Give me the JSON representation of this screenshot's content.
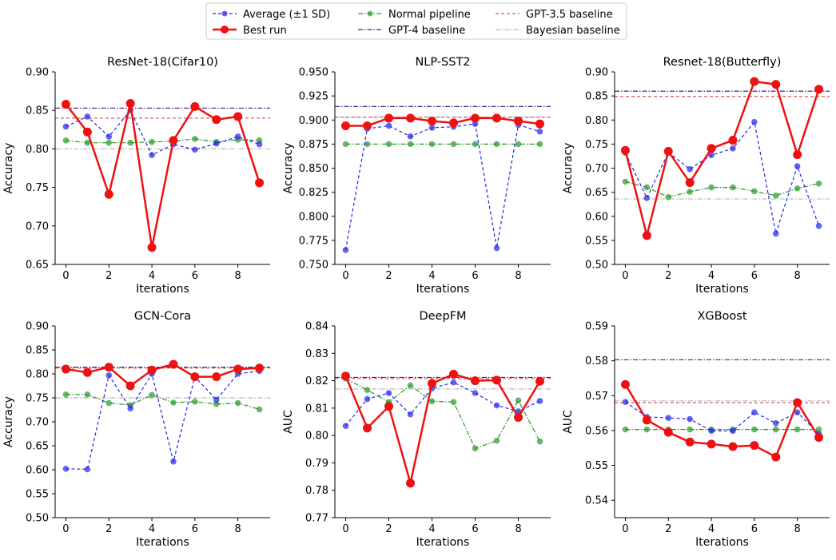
{
  "legend": {
    "entries": [
      {
        "label": "Average (±1 SD)",
        "color": "#2222ee",
        "style": "dashed-marker"
      },
      {
        "label": "Best run",
        "color": "#ee1111",
        "style": "solid-marker"
      },
      {
        "label": "Normal pipeline",
        "color": "#2a9a2a",
        "style": "dashdot-marker"
      },
      {
        "label": "GPT-4 baseline",
        "color": "#4b1b8a",
        "style": "dashdot"
      },
      {
        "label": "GPT-3.5 baseline",
        "color": "#d06060",
        "style": "dashed"
      },
      {
        "label": "Bayesian baseline",
        "color": "#b8b8b8",
        "style": "dashdot"
      }
    ]
  },
  "colors": {
    "average": "#2222ee",
    "best": "#ee1111",
    "normal": "#2a9a2a",
    "gpt4": "#4b1b8a",
    "gpt35": "#d06060",
    "bayes": "#b8b8b8"
  },
  "chart_data": [
    {
      "type": "line",
      "title": "ResNet-18(Cifar10)",
      "xlabel": "Iterations",
      "ylabel": "Accuracy",
      "x": [
        0,
        1,
        2,
        3,
        4,
        5,
        6,
        7,
        8,
        9
      ],
      "xticks": [
        "0",
        "2",
        "4",
        "6",
        "8"
      ],
      "ylim": [
        0.65,
        0.9
      ],
      "yticks": [
        "0.65",
        "0.70",
        "0.75",
        "0.80",
        "0.85",
        "0.90"
      ],
      "series": [
        {
          "name": "Average (±1 SD)",
          "values": [
            0.829,
            0.842,
            0.816,
            0.85,
            0.792,
            0.806,
            0.799,
            0.807,
            0.816,
            0.806
          ]
        },
        {
          "name": "Best run",
          "values": [
            0.858,
            0.822,
            0.741,
            0.859,
            0.672,
            0.811,
            0.855,
            0.838,
            0.842,
            0.756
          ]
        },
        {
          "name": "Normal pipeline",
          "values": [
            0.811,
            0.808,
            0.808,
            0.808,
            0.809,
            0.81,
            0.813,
            0.809,
            0.812,
            0.811
          ]
        }
      ],
      "baselines": {
        "GPT-4 baseline": 0.853,
        "GPT-3.5 baseline": 0.84,
        "Bayesian baseline": 0.8
      }
    },
    {
      "type": "line",
      "title": "NLP-SST2",
      "xlabel": "Iterations",
      "ylabel": "Accuracy",
      "x": [
        0,
        1,
        2,
        3,
        4,
        5,
        6,
        7,
        8,
        9
      ],
      "xticks": [
        "0",
        "2",
        "4",
        "6",
        "8"
      ],
      "ylim": [
        0.75,
        0.95
      ],
      "yticks": [
        "0.750",
        "0.775",
        "0.800",
        "0.825",
        "0.850",
        "0.875",
        "0.900",
        "0.925",
        "0.950"
      ],
      "series": [
        {
          "name": "Average (±1 SD)",
          "values": [
            0.765,
            0.891,
            0.894,
            0.883,
            0.892,
            0.893,
            0.896,
            0.767,
            0.895,
            0.888
          ]
        },
        {
          "name": "Best run",
          "values": [
            0.894,
            0.894,
            0.902,
            0.902,
            0.899,
            0.897,
            0.902,
            0.902,
            0.899,
            0.896
          ]
        },
        {
          "name": "Normal pipeline",
          "values": [
            0.875,
            0.875,
            0.875,
            0.875,
            0.875,
            0.875,
            0.875,
            0.875,
            0.875,
            0.875
          ]
        }
      ],
      "baselines": {
        "GPT-4 baseline": 0.914,
        "GPT-3.5 baseline": 0.903,
        "Bayesian baseline": 0.903
      }
    },
    {
      "type": "line",
      "title": "Resnet-18(Butterfly)",
      "xlabel": "Iterations",
      "ylabel": "Accuracy",
      "x": [
        0,
        1,
        2,
        3,
        4,
        5,
        6,
        7,
        8,
        9
      ],
      "xticks": [
        "0",
        "2",
        "4",
        "6",
        "8"
      ],
      "ylim": [
        0.5,
        0.9
      ],
      "yticks": [
        "0.50",
        "0.55",
        "0.60",
        "0.65",
        "0.70",
        "0.75",
        "0.80",
        "0.85",
        "0.90"
      ],
      "series": [
        {
          "name": "Average (±1 SD)",
          "values": [
            0.732,
            0.638,
            0.733,
            0.698,
            0.727,
            0.741,
            0.796,
            0.564,
            0.704,
            0.58
          ]
        },
        {
          "name": "Best run",
          "values": [
            0.737,
            0.56,
            0.735,
            0.67,
            0.741,
            0.758,
            0.88,
            0.874,
            0.728,
            0.864
          ]
        },
        {
          "name": "Normal pipeline",
          "values": [
            0.672,
            0.66,
            0.64,
            0.651,
            0.66,
            0.66,
            0.652,
            0.643,
            0.658,
            0.668
          ]
        }
      ],
      "baselines": {
        "GPT-4 baseline": 0.86,
        "GPT-3.5 baseline": 0.849,
        "Bayesian baseline": 0.636
      }
    },
    {
      "type": "line",
      "title": "GCN-Cora",
      "xlabel": "Iterations",
      "ylabel": "Accuracy",
      "x": [
        0,
        1,
        2,
        3,
        4,
        5,
        6,
        7,
        8,
        9
      ],
      "xticks": [
        "0",
        "2",
        "4",
        "6",
        "8"
      ],
      "ylim": [
        0.5,
        0.9
      ],
      "yticks": [
        "0.50",
        "0.55",
        "0.60",
        "0.65",
        "0.70",
        "0.75",
        "0.80",
        "0.85",
        "0.90"
      ],
      "series": [
        {
          "name": "Average (±1 SD)",
          "values": [
            0.602,
            0.601,
            0.797,
            0.728,
            0.8,
            0.617,
            0.794,
            0.746,
            0.8,
            0.806
          ]
        },
        {
          "name": "Best run",
          "values": [
            0.81,
            0.803,
            0.814,
            0.775,
            0.808,
            0.82,
            0.794,
            0.794,
            0.81,
            0.812
          ]
        },
        {
          "name": "Normal pipeline",
          "values": [
            0.757,
            0.757,
            0.739,
            0.735,
            0.756,
            0.74,
            0.742,
            0.737,
            0.739,
            0.726
          ]
        }
      ],
      "baselines": {
        "GPT-4 baseline": 0.814,
        "GPT-3.5 baseline": 0.812,
        "Bayesian baseline": 0.75
      }
    },
    {
      "type": "line",
      "title": "DeepFM",
      "xlabel": "Iterations",
      "ylabel": "AUC",
      "x": [
        0,
        1,
        2,
        3,
        4,
        5,
        6,
        7,
        8,
        9
      ],
      "xticks": [
        "0",
        "2",
        "4",
        "6",
        "8"
      ],
      "ylim": [
        0.77,
        0.84
      ],
      "yticks": [
        "0.77",
        "0.78",
        "0.79",
        "0.80",
        "0.81",
        "0.82",
        "0.83",
        "0.84"
      ],
      "series": [
        {
          "name": "Average (±1 SD)",
          "values": [
            0.8035,
            0.8133,
            0.8155,
            0.8077,
            0.8172,
            0.8194,
            0.8155,
            0.811,
            0.8088,
            0.8126
          ]
        },
        {
          "name": "Best run",
          "values": [
            0.8217,
            0.8027,
            0.8106,
            0.7826,
            0.819,
            0.8224,
            0.82,
            0.8202,
            0.8066,
            0.8198
          ]
        },
        {
          "name": "Normal pipeline",
          "values": [
            0.8208,
            0.8166,
            0.8122,
            0.8183,
            0.8125,
            0.8122,
            0.7953,
            0.7981,
            0.8128,
            0.7978
          ]
        }
      ],
      "baselines": {
        "GPT-4 baseline": 0.8212,
        "GPT-3.5 baseline": 0.8208,
        "Bayesian baseline": 0.817
      }
    },
    {
      "type": "line",
      "title": "XGBoost",
      "xlabel": "Iterations",
      "ylabel": "AUC",
      "x": [
        0,
        1,
        2,
        3,
        4,
        5,
        6,
        7,
        8,
        9
      ],
      "xticks": [
        "0",
        "2",
        "4",
        "6",
        "8"
      ],
      "ylim": [
        0.535,
        0.59
      ],
      "yticks": [
        "0.54",
        "0.55",
        "0.56",
        "0.57",
        "0.58",
        "0.59"
      ],
      "series": [
        {
          "name": "Average (±1 SD)",
          "values": [
            0.5682,
            0.5639,
            0.5636,
            0.5633,
            0.5599,
            0.5599,
            0.5652,
            0.5621,
            0.5652,
            0.559
          ]
        },
        {
          "name": "Best run",
          "values": [
            0.5732,
            0.563,
            0.5595,
            0.5567,
            0.5561,
            0.5554,
            0.5557,
            0.5524,
            0.568,
            0.558
          ]
        },
        {
          "name": "Normal pipeline",
          "values": [
            0.5603,
            0.5603,
            0.5603,
            0.5603,
            0.5603,
            0.5603,
            0.5603,
            0.5603,
            0.5603,
            0.5603
          ]
        }
      ],
      "baselines": {
        "GPT-4 baseline": 0.5803,
        "GPT-3.5 baseline": 0.568,
        "Bayesian baseline": 0.5685
      }
    }
  ]
}
